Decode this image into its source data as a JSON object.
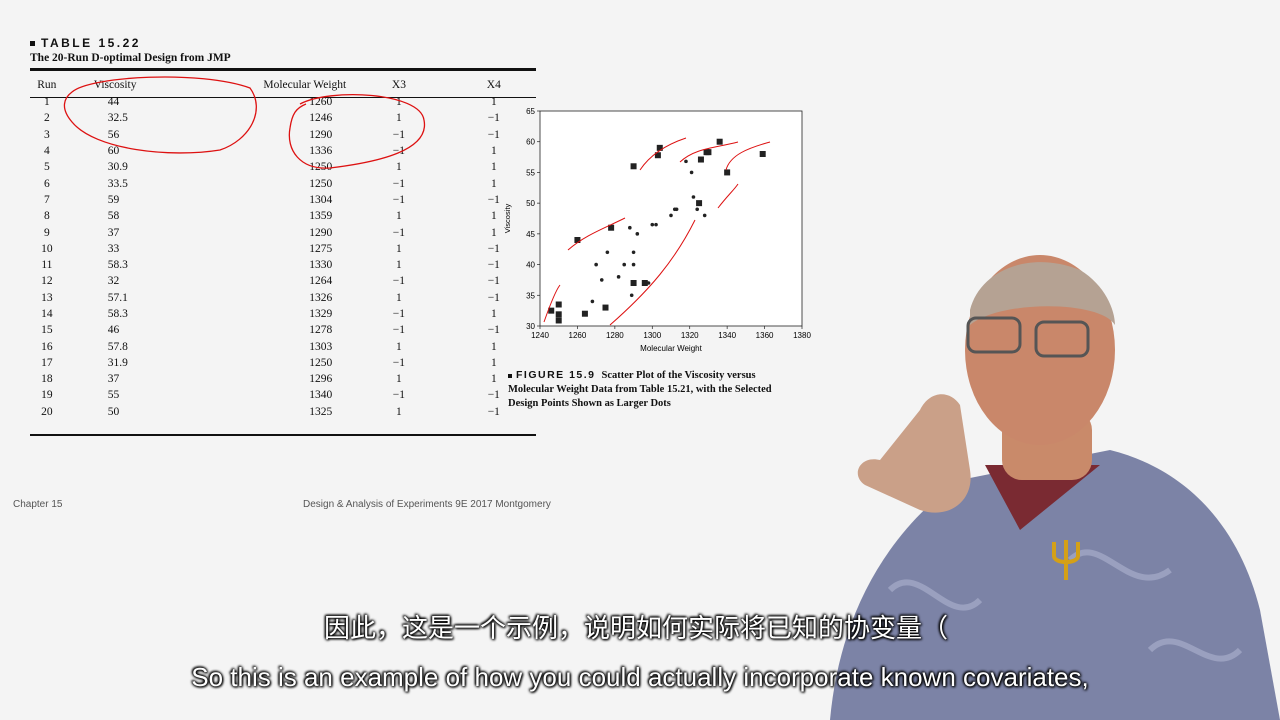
{
  "table": {
    "label": "TABLE 15.22",
    "title": "The 20-Run D-optimal Design from JMP",
    "headers": [
      "Run",
      "Viscosity",
      "Molecular Weight",
      "X3",
      "X4"
    ],
    "rows": [
      [
        "1",
        "44",
        "1260",
        "1",
        "1"
      ],
      [
        "2",
        "32.5",
        "1246",
        "1",
        "−1"
      ],
      [
        "3",
        "56",
        "1290",
        "−1",
        "−1"
      ],
      [
        "4",
        "60",
        "1336",
        "−1",
        "1"
      ],
      [
        "5",
        "30.9",
        "1250",
        "1",
        "1"
      ],
      [
        "6",
        "33.5",
        "1250",
        "−1",
        "1"
      ],
      [
        "7",
        "59",
        "1304",
        "−1",
        "−1"
      ],
      [
        "8",
        "58",
        "1359",
        "1",
        "1"
      ],
      [
        "9",
        "37",
        "1290",
        "−1",
        "1"
      ],
      [
        "10",
        "33",
        "1275",
        "1",
        "−1"
      ],
      [
        "11",
        "58.3",
        "1330",
        "1",
        "−1"
      ],
      [
        "12",
        "32",
        "1264",
        "−1",
        "−1"
      ],
      [
        "13",
        "57.1",
        "1326",
        "1",
        "−1"
      ],
      [
        "14",
        "58.3",
        "1329",
        "−1",
        "1"
      ],
      [
        "15",
        "46",
        "1278",
        "−1",
        "−1"
      ],
      [
        "16",
        "57.8",
        "1303",
        "1",
        "1"
      ],
      [
        "17",
        "31.9",
        "1250",
        "−1",
        "1"
      ],
      [
        "18",
        "37",
        "1296",
        "1",
        "1"
      ],
      [
        "19",
        "55",
        "1340",
        "−1",
        "−1"
      ],
      [
        "20",
        "50",
        "1325",
        "1",
        "−1"
      ]
    ]
  },
  "chart_data": {
    "type": "scatter",
    "xlabel": "Molecular Weight",
    "ylabel": "Viscosity",
    "xlim": [
      1240,
      1380
    ],
    "ylim": [
      30,
      65
    ],
    "xticks": [
      1240,
      1260,
      1280,
      1300,
      1320,
      1340,
      1360,
      1380
    ],
    "yticks": [
      30,
      35,
      40,
      45,
      50,
      55,
      60,
      65
    ],
    "series": [
      {
        "name": "",
        "marker": "small-dot",
        "x": [
          1268,
          1270,
          1273,
          1276,
          1282,
          1285,
          1288,
          1289,
          1290,
          1290,
          1292,
          1298,
          1300,
          1302,
          1310,
          1312,
          1313,
          1318,
          1321,
          1322,
          1324,
          1328
        ],
        "y": [
          34,
          40,
          37.5,
          42,
          38,
          40,
          46,
          35,
          40,
          42,
          45,
          37,
          46.5,
          46.5,
          48,
          49,
          49,
          56.8,
          55,
          51,
          49,
          48
        ]
      },
      {
        "name": "",
        "marker": "large-square",
        "x": [
          1246,
          1250,
          1250,
          1250,
          1260,
          1264,
          1275,
          1278,
          1290,
          1290,
          1296,
          1303,
          1304,
          1325,
          1326,
          1329,
          1330,
          1336,
          1340,
          1359
        ],
        "y": [
          32.5,
          30.9,
          33.5,
          31.9,
          44,
          32,
          33,
          46,
          56,
          37,
          37,
          57.8,
          59,
          50,
          57.1,
          58.3,
          58.3,
          60,
          55,
          58
        ]
      }
    ]
  },
  "figure": {
    "label": "FIGURE 15.9",
    "caption": "Scatter Plot of the Viscosity versus Molecular Weight Data from Table 15.21, with the Selected Design Points Shown as Larger Dots"
  },
  "footer": {
    "chapter": "Chapter 15",
    "course": "Design & Analysis of Experiments 9E 2017 Montgomery"
  },
  "subtitles": {
    "cn": "因此，这是一个示例，说明如何实际将已知的协变量（",
    "en": "So this is an example of how you could actually incorporate known covariates,"
  }
}
